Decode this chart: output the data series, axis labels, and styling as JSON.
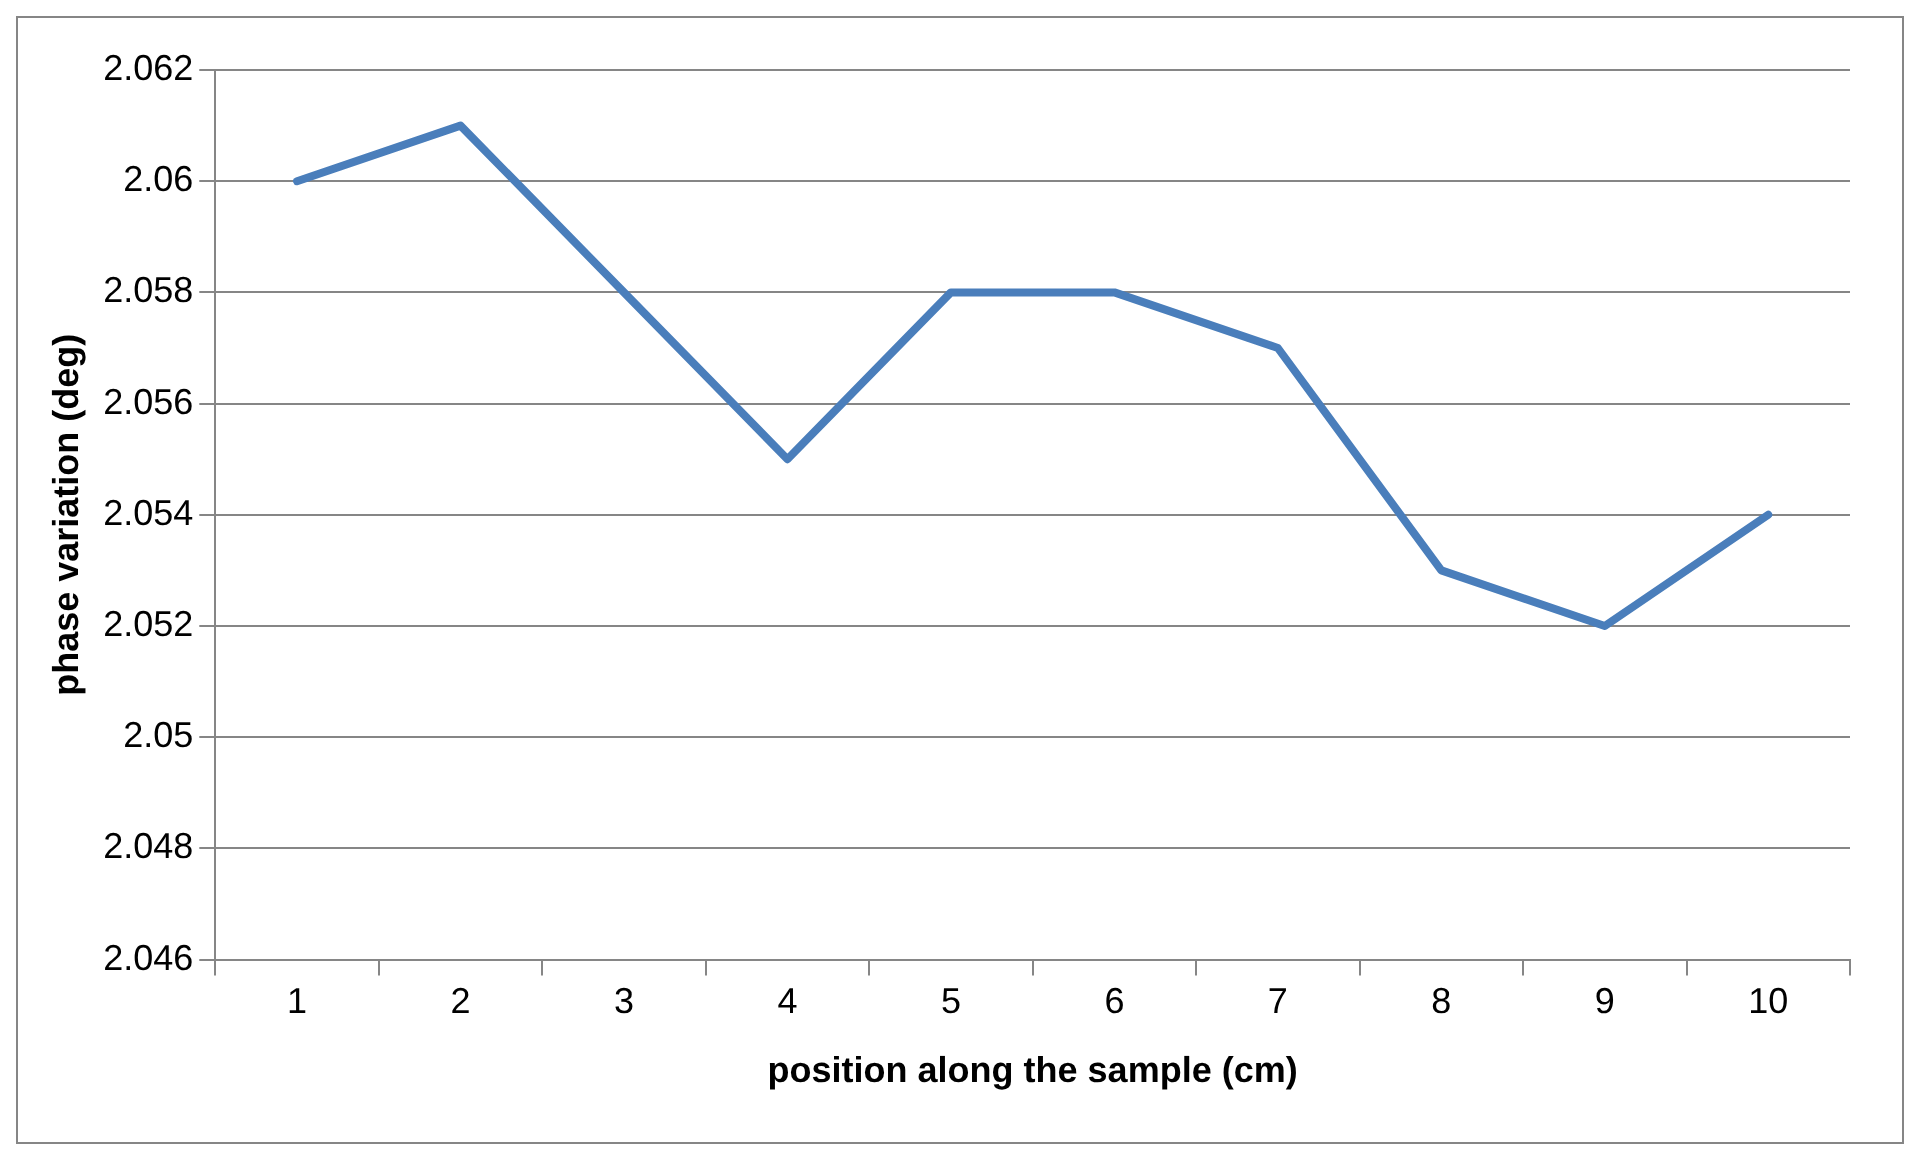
{
  "chart_data": {
    "type": "line",
    "xlabel": "position along the sample (cm)",
    "ylabel": "phase variation (deg)",
    "categories": [
      "1",
      "2",
      "3",
      "4",
      "5",
      "6",
      "7",
      "8",
      "9",
      "10"
    ],
    "values": [
      2.06,
      2.061,
      2.058,
      2.055,
      2.058,
      2.058,
      2.057,
      2.053,
      2.052,
      2.054
    ],
    "color": "#4a7ebb",
    "ylim": [
      2.046,
      2.062
    ],
    "yticks": [
      2.046,
      2.048,
      2.05,
      2.052,
      2.054,
      2.056,
      2.058,
      2.06,
      2.062
    ],
    "grid": "y",
    "marker": "none",
    "line_style": "solid",
    "legend": false
  }
}
